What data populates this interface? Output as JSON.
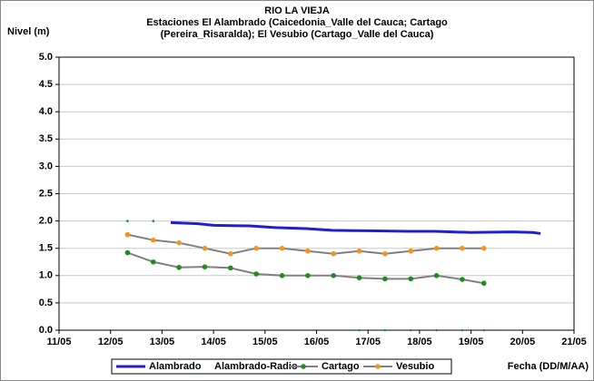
{
  "chart_data": {
    "type": "line",
    "title": [
      "RIO LA VIEJA",
      "Estaciones El Alambrado (Caicedonia_Valle del Cauca; Cartago",
      "(Pereira_Risaralda);  El Vesubio (Cartago_Valle del Cauca)"
    ],
    "y_label": "Nivel (m)",
    "x_label": "Fecha (DD/M/AA)",
    "xlim": [
      11,
      21
    ],
    "xticks": [
      {
        "value": 11,
        "label": "11/05"
      },
      {
        "value": 12,
        "label": "12/05"
      },
      {
        "value": 13,
        "label": "13/05"
      },
      {
        "value": 14,
        "label": "14/05"
      },
      {
        "value": 15,
        "label": "15/05"
      },
      {
        "value": 16,
        "label": "16/05"
      },
      {
        "value": 17,
        "label": "17/05"
      },
      {
        "value": 18,
        "label": "18/05"
      },
      {
        "value": 19,
        "label": "19/05"
      },
      {
        "value": 20,
        "label": "20/05"
      },
      {
        "value": 21,
        "label": "21/05"
      }
    ],
    "ylim": [
      0,
      5
    ],
    "yticks": [
      {
        "value": 0,
        "label": "0.0"
      },
      0.5,
      {
        "value": 1,
        "label": "1.0"
      },
      1.5,
      {
        "value": 2,
        "label": "2.0"
      },
      2.5,
      {
        "value": 3,
        "label": "3.0"
      },
      3.5,
      {
        "value": 4,
        "label": "4.0"
      },
      4.5,
      {
        "value": 5,
        "label": "5.0"
      }
    ],
    "grid": true,
    "legend": "bottom",
    "series": [
      {
        "name": "Alambrado",
        "color": "#1f1fd0",
        "line": true,
        "marker": false,
        "x": [
          13.17,
          13.7,
          14.0,
          14.7,
          15.2,
          15.8,
          16.3,
          17.0,
          17.8,
          18.3,
          19.0,
          19.8,
          20.2,
          20.35
        ],
        "values": [
          1.97,
          1.95,
          1.92,
          1.91,
          1.88,
          1.86,
          1.83,
          1.82,
          1.81,
          1.81,
          1.79,
          1.8,
          1.79,
          1.77
        ]
      },
      {
        "name": "Alambrado-Radio",
        "color": "#1e8c1e",
        "line": false,
        "marker": true,
        "x": [
          12.33,
          12.83,
          16.83,
          17.33,
          17.83,
          18.33,
          18.83,
          19.25
        ],
        "values": [
          2.0,
          2.0,
          0,
          0,
          0,
          0,
          0,
          0
        ]
      },
      {
        "name": "Cartago",
        "color": "#1e8c1e",
        "line": true,
        "marker": true,
        "x": [
          12.33,
          12.83,
          13.33,
          13.83,
          14.33,
          14.83,
          15.33,
          15.83,
          16.33,
          16.83,
          17.33,
          17.83,
          18.33,
          18.83,
          19.25
        ],
        "values": [
          1.42,
          1.25,
          1.15,
          1.16,
          1.14,
          1.03,
          1.0,
          1.0,
          1.0,
          0.96,
          0.94,
          0.94,
          1.0,
          0.93,
          0.86
        ]
      },
      {
        "name": "Vesubio",
        "color": "#f0961e",
        "line": true,
        "marker": true,
        "x": [
          12.33,
          12.83,
          13.33,
          13.83,
          14.33,
          14.83,
          15.33,
          15.83,
          16.33,
          16.83,
          17.33,
          17.83,
          18.33,
          18.83,
          19.25
        ],
        "values": [
          1.75,
          1.65,
          1.6,
          1.5,
          1.4,
          1.5,
          1.5,
          1.45,
          1.4,
          1.45,
          1.4,
          1.45,
          1.5,
          1.5,
          1.5
        ]
      }
    ]
  }
}
